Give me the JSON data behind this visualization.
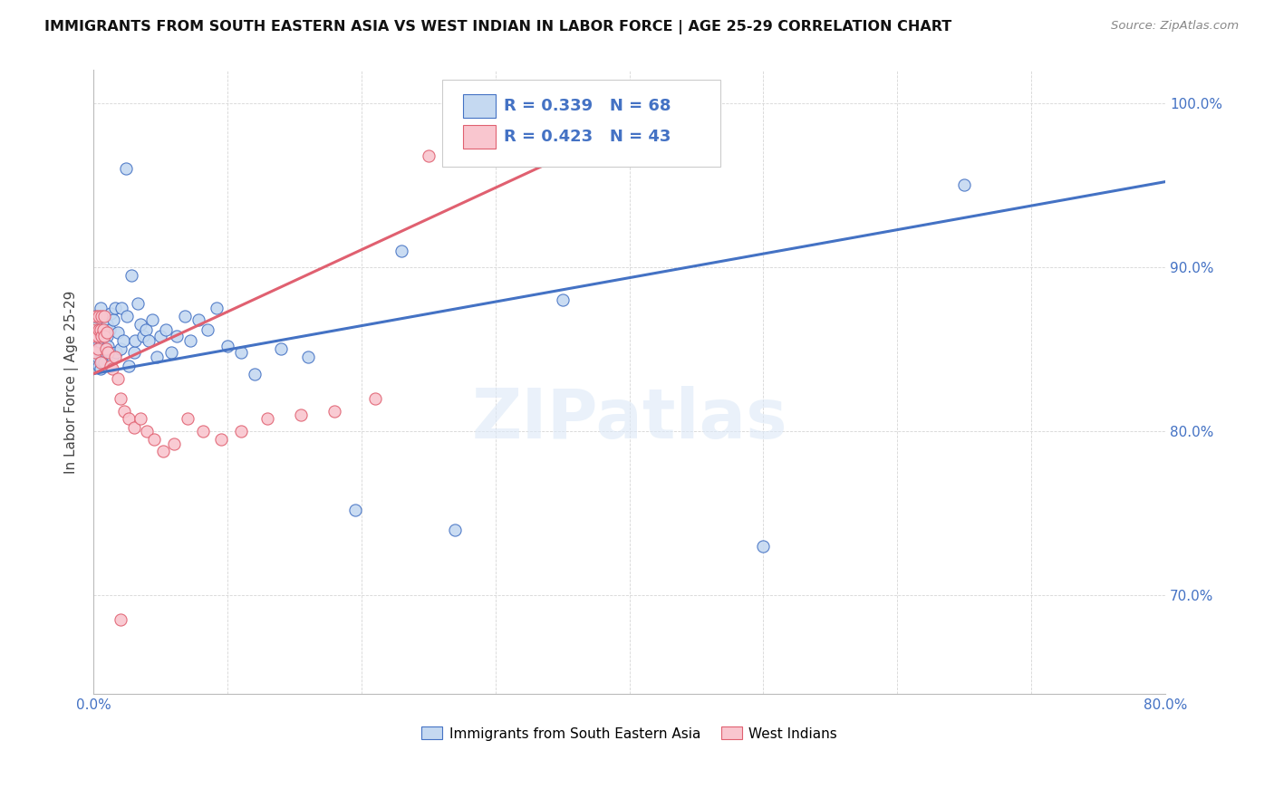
{
  "title": "IMMIGRANTS FROM SOUTH EASTERN ASIA VS WEST INDIAN IN LABOR FORCE | AGE 25-29 CORRELATION CHART",
  "source": "Source: ZipAtlas.com",
  "ylabel": "In Labor Force | Age 25-29",
  "ytick_labels": [
    "70.0%",
    "80.0%",
    "90.0%",
    "100.0%"
  ],
  "ytick_values": [
    0.7,
    0.8,
    0.9,
    1.0
  ],
  "legend_blue_r": "R = 0.339",
  "legend_blue_n": "N = 68",
  "legend_pink_r": "R = 0.423",
  "legend_pink_n": "N = 43",
  "legend_label_blue": "Immigrants from South Eastern Asia",
  "legend_label_pink": "West Indians",
  "blue_fill": "#c5d9f1",
  "blue_edge": "#4472c4",
  "pink_fill": "#f9c6cf",
  "pink_edge": "#e06070",
  "blue_line": "#4472c4",
  "pink_line": "#e06070",
  "text_blue": "#4472c4",
  "watermark": "ZIPatlas",
  "blue_scatter_x": [
    0.001,
    0.001,
    0.002,
    0.002,
    0.003,
    0.003,
    0.003,
    0.004,
    0.004,
    0.005,
    0.005,
    0.005,
    0.006,
    0.006,
    0.006,
    0.007,
    0.007,
    0.008,
    0.008,
    0.009,
    0.009,
    0.01,
    0.01,
    0.011,
    0.012,
    0.012,
    0.013,
    0.014,
    0.015,
    0.016,
    0.017,
    0.018,
    0.02,
    0.021,
    0.022,
    0.024,
    0.025,
    0.026,
    0.028,
    0.03,
    0.031,
    0.033,
    0.035,
    0.037,
    0.039,
    0.041,
    0.044,
    0.047,
    0.05,
    0.054,
    0.058,
    0.062,
    0.068,
    0.072,
    0.078,
    0.085,
    0.092,
    0.1,
    0.11,
    0.12,
    0.14,
    0.16,
    0.195,
    0.23,
    0.27,
    0.35,
    0.5,
    0.65
  ],
  "blue_scatter_y": [
    0.86,
    0.87,
    0.855,
    0.848,
    0.862,
    0.845,
    0.856,
    0.853,
    0.84,
    0.875,
    0.848,
    0.838,
    0.86,
    0.853,
    0.843,
    0.858,
    0.848,
    0.855,
    0.842,
    0.862,
    0.848,
    0.858,
    0.865,
    0.852,
    0.862,
    0.848,
    0.872,
    0.845,
    0.868,
    0.875,
    0.848,
    0.86,
    0.85,
    0.875,
    0.855,
    0.96,
    0.87,
    0.84,
    0.895,
    0.848,
    0.855,
    0.878,
    0.865,
    0.858,
    0.862,
    0.855,
    0.868,
    0.845,
    0.858,
    0.862,
    0.848,
    0.858,
    0.87,
    0.855,
    0.868,
    0.862,
    0.875,
    0.852,
    0.848,
    0.835,
    0.85,
    0.845,
    0.752,
    0.91,
    0.74,
    0.88,
    0.73,
    0.95
  ],
  "pink_scatter_x": [
    0.001,
    0.001,
    0.002,
    0.002,
    0.003,
    0.003,
    0.004,
    0.004,
    0.005,
    0.005,
    0.006,
    0.006,
    0.007,
    0.008,
    0.008,
    0.009,
    0.01,
    0.011,
    0.013,
    0.014,
    0.016,
    0.018,
    0.02,
    0.023,
    0.026,
    0.03,
    0.035,
    0.04,
    0.045,
    0.052,
    0.06,
    0.07,
    0.082,
    0.095,
    0.11,
    0.13,
    0.155,
    0.18,
    0.21,
    0.25,
    0.3,
    0.38,
    0.02
  ],
  "pink_scatter_y": [
    0.858,
    0.848,
    0.862,
    0.87,
    0.858,
    0.85,
    0.862,
    0.87,
    0.862,
    0.842,
    0.858,
    0.87,
    0.862,
    0.87,
    0.858,
    0.85,
    0.86,
    0.848,
    0.84,
    0.838,
    0.845,
    0.832,
    0.82,
    0.812,
    0.808,
    0.802,
    0.808,
    0.8,
    0.795,
    0.788,
    0.792,
    0.808,
    0.8,
    0.795,
    0.8,
    0.808,
    0.81,
    0.812,
    0.82,
    0.968,
    0.97,
    0.97,
    0.685
  ],
  "xlim": [
    0.0,
    0.8
  ],
  "ylim": [
    0.64,
    1.02
  ],
  "blue_trendline_x0": 0.0,
  "blue_trendline_y0": 0.835,
  "blue_trendline_x1": 0.8,
  "blue_trendline_y1": 0.952,
  "pink_trendline_x0": 0.0,
  "pink_trendline_y0": 0.835,
  "pink_trendline_x1": 0.45,
  "pink_trendline_y1": 1.005
}
